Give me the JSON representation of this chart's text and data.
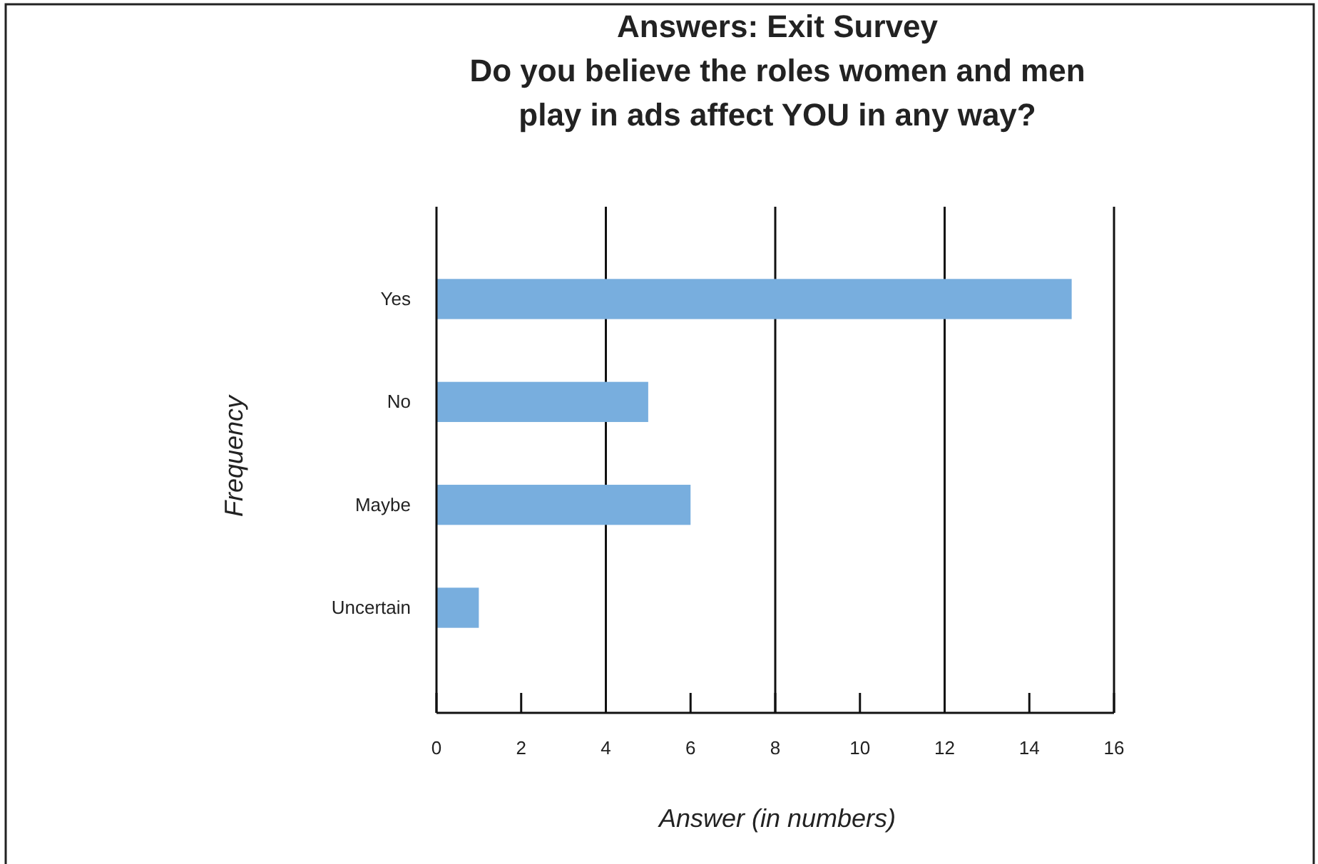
{
  "chart_data": {
    "type": "bar",
    "orientation": "horizontal",
    "title": "Answers: Exit Survey\nDo you believe the roles women and men\nplay in ads affect YOU in any way?",
    "xlabel": "Answer (in numbers)",
    "ylabel": "Frequency",
    "categories": [
      "Yes",
      "No",
      "Maybe",
      "Uncertain"
    ],
    "values": [
      15,
      5,
      6,
      1
    ],
    "color": "#78aede",
    "xlim": [
      0,
      16
    ],
    "xticks": [
      0,
      2,
      4,
      6,
      8,
      10,
      12,
      14,
      16
    ],
    "grid": "x"
  }
}
